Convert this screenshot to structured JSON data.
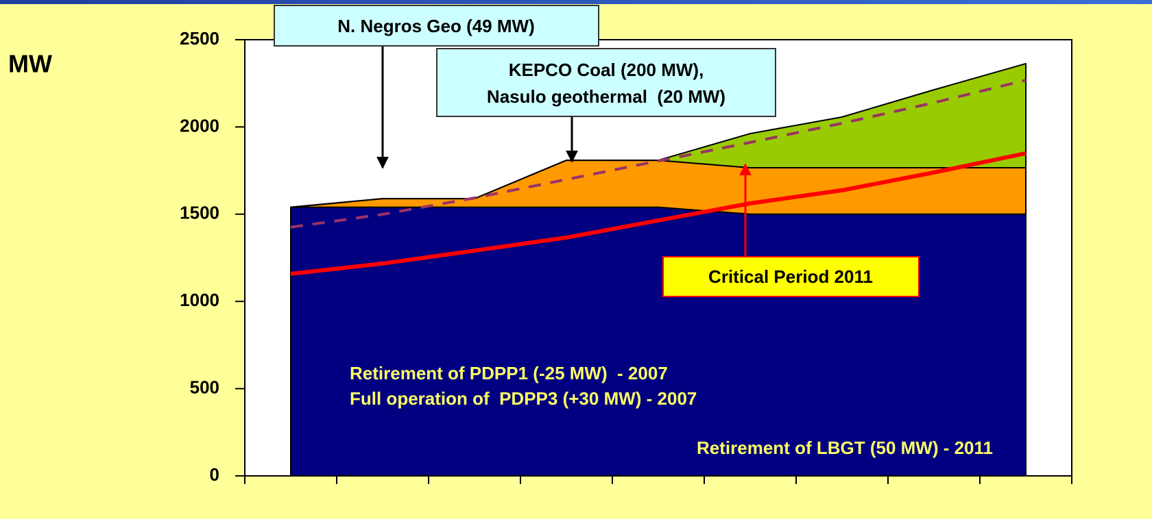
{
  "chart_data": {
    "type": "area",
    "y_label": "MW",
    "categories": [
      null,
      null,
      null,
      null,
      null,
      null,
      null,
      null,
      null
    ],
    "ylim": [
      0,
      2500
    ],
    "yticks": [
      0,
      500,
      1000,
      1500,
      2000,
      2500
    ],
    "series": [
      {
        "color": "#000080",
        "values": [
          1540,
          1540,
          1540,
          1540,
          1540,
          1500,
          1500,
          1500,
          1500
        ]
      },
      {
        "color": "#ff9900",
        "values": [
          0,
          49,
          49,
          269,
          269,
          266,
          266,
          266,
          266
        ]
      },
      {
        "color": "#99cc00",
        "values": [
          0,
          0,
          0,
          0,
          0,
          196,
          291,
          447,
          597
        ]
      }
    ],
    "lines": [
      {
        "color": "#993366",
        "dashed": true,
        "values": [
          1425,
          1499,
          1593,
          1699,
          1805,
          1911,
          2021,
          2139,
          2268
        ]
      },
      {
        "color": "#ff0000",
        "dashed": false,
        "values": [
          1158,
          1217,
          1291,
          1366,
          1464,
          1562,
          1637,
          1739,
          1849
        ]
      }
    ],
    "annotations": [
      {
        "text": [
          "N. Negros Geo (49 MW)"
        ]
      },
      {
        "text": [
          "KEPCO Coal (200 MW),",
          "Nasulo geothermal  (20 MW)"
        ]
      },
      {
        "text": [
          "Critical Period 2011"
        ]
      },
      {
        "text": [
          "Retirement of PDPP1 (-25 MW)  - 2007"
        ]
      },
      {
        "text": [
          "Full operation of  PDPP3 (+30 MW) - 2007"
        ]
      },
      {
        "text": [
          "Retirement of LBGT (50 MW) - 2011"
        ]
      }
    ]
  }
}
